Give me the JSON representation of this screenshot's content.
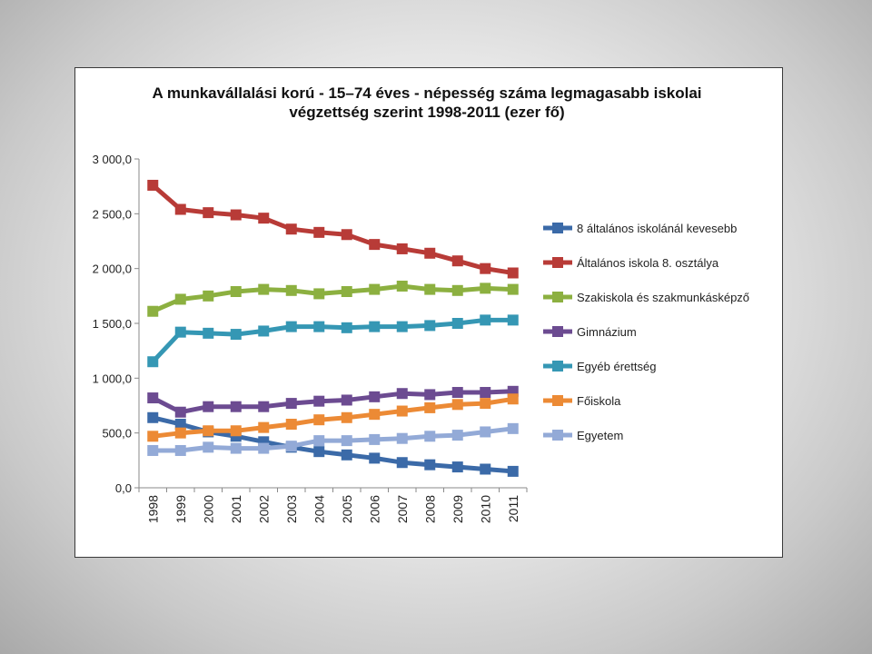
{
  "chart_data": {
    "type": "line",
    "title": "A munkavállalási korú - 15–74 éves - népesség száma legmagasabb iskolai végzettség szerint 1998-2011 (ezer fő)",
    "title_lines": [
      "A munkavállalási korú - 15–74 éves - népesség száma legmagasabb iskolai",
      "végzettség szerint 1998-2011 (ezer fő)"
    ],
    "xlabel": "",
    "ylabel": "",
    "x": [
      "1998",
      "1999",
      "2000",
      "2001",
      "2002",
      "2003",
      "2004",
      "2005",
      "2006",
      "2007",
      "2008",
      "2009",
      "2010",
      "2011"
    ],
    "ylim": [
      0,
      3000
    ],
    "yticks": [
      0,
      500,
      1000,
      1500,
      2000,
      2500,
      3000
    ],
    "ytick_labels": [
      "0,0",
      "500,0",
      "1 000,0",
      "1 500,0",
      "2 000,0",
      "2 500,0",
      "3 000,0"
    ],
    "grid": false,
    "legend_position": "right",
    "marker": "square",
    "series": [
      {
        "name": "8 általános iskolánál kevesebb",
        "color": "#3b6aa8",
        "values": [
          640,
          580,
          510,
          470,
          420,
          370,
          330,
          300,
          270,
          230,
          210,
          190,
          170,
          150
        ]
      },
      {
        "name": "Általános iskola 8. osztálya",
        "color": "#b83b37",
        "values": [
          2760,
          2540,
          2510,
          2490,
          2460,
          2360,
          2330,
          2310,
          2220,
          2180,
          2140,
          2070,
          2000,
          1960
        ]
      },
      {
        "name": "Szakiskola és szakmunkásképző",
        "color": "#8cb040",
        "values": [
          1610,
          1720,
          1750,
          1790,
          1810,
          1800,
          1770,
          1790,
          1810,
          1840,
          1810,
          1800,
          1820,
          1810
        ]
      },
      {
        "name": "Gimnázium",
        "color": "#6c4b91",
        "values": [
          820,
          690,
          740,
          740,
          740,
          770,
          790,
          800,
          830,
          860,
          850,
          870,
          870,
          880
        ]
      },
      {
        "name": "Egyéb érettség",
        "color": "#3597b4",
        "values": [
          1150,
          1420,
          1410,
          1400,
          1430,
          1470,
          1470,
          1460,
          1470,
          1470,
          1480,
          1500,
          1530,
          1530
        ]
      },
      {
        "name": "Főiskola",
        "color": "#ec8a35",
        "values": [
          470,
          500,
          520,
          520,
          550,
          580,
          620,
          640,
          670,
          700,
          730,
          760,
          770,
          810
        ]
      },
      {
        "name": "Egyetem",
        "color": "#93aad7",
        "values": [
          340,
          340,
          370,
          360,
          360,
          380,
          430,
          430,
          440,
          450,
          470,
          480,
          510,
          540
        ]
      }
    ]
  }
}
